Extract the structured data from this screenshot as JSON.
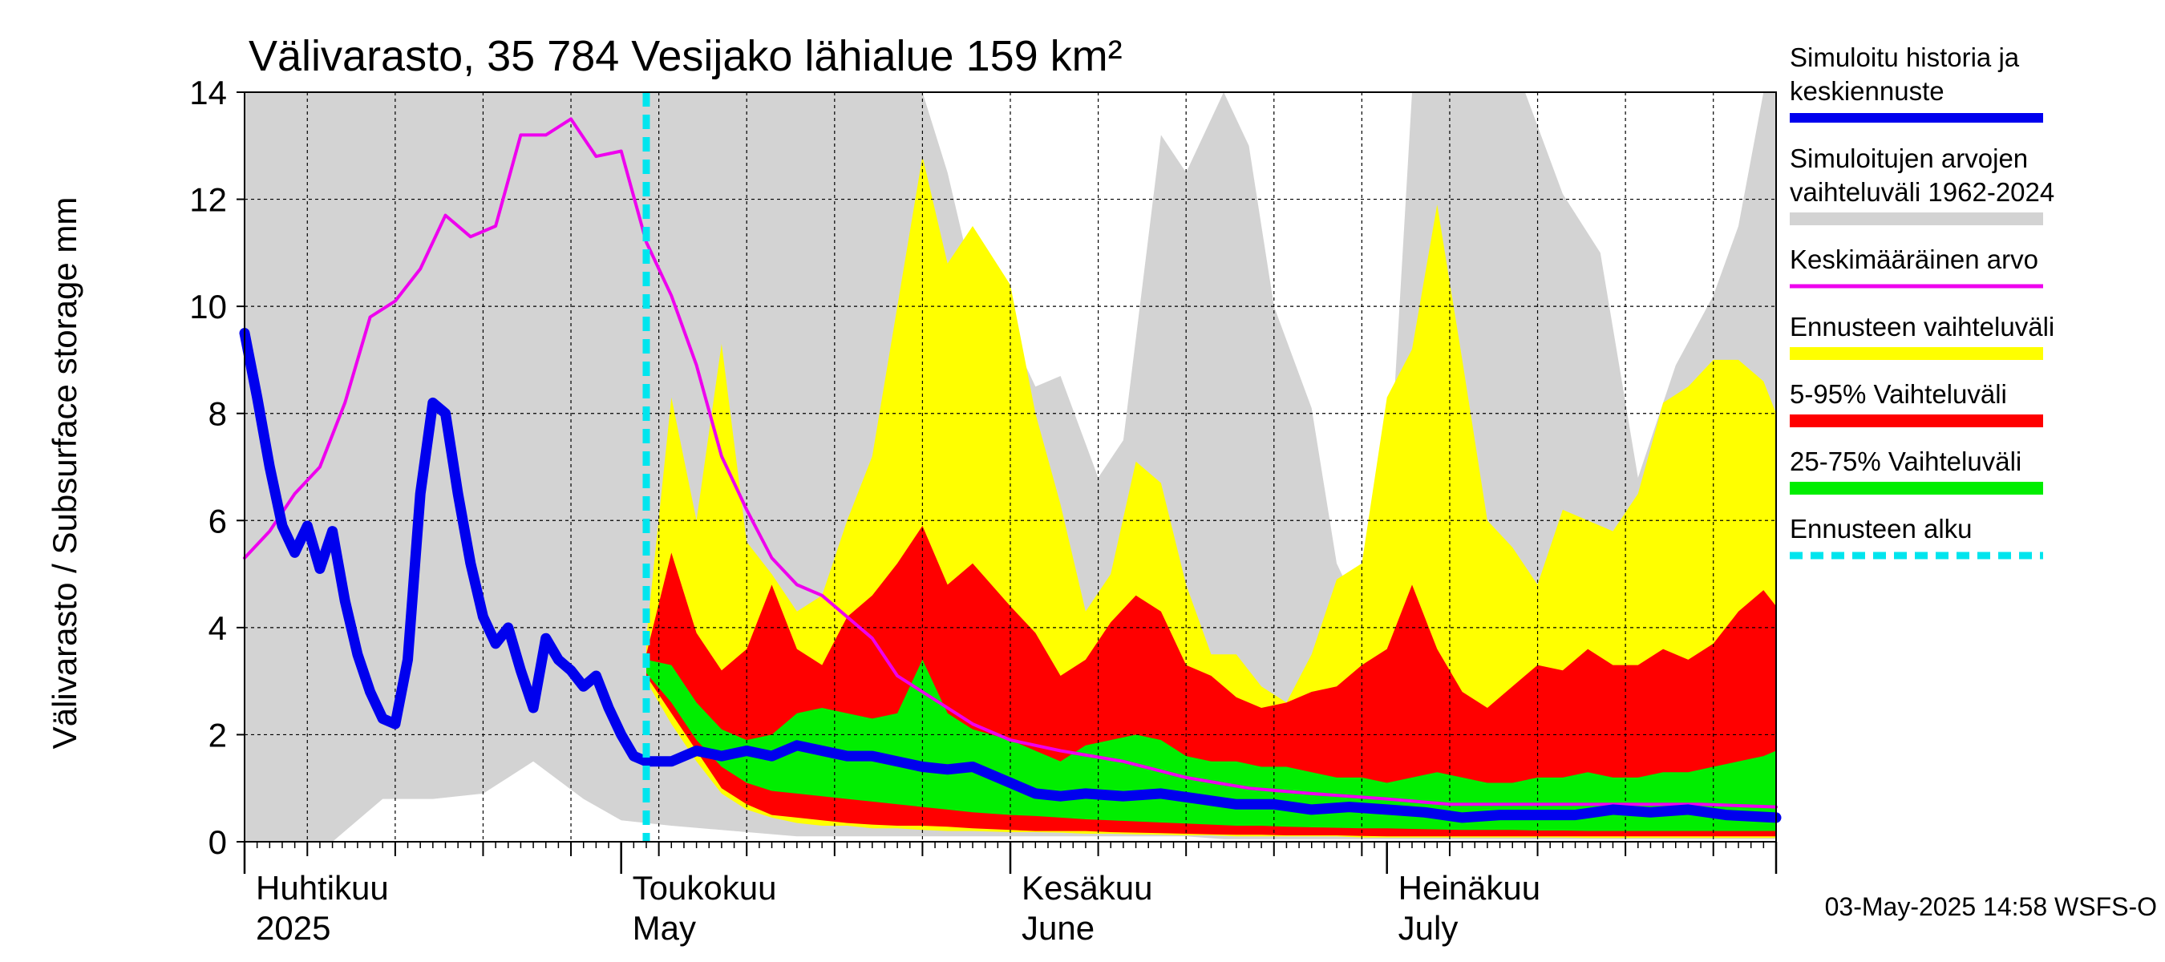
{
  "chart_data": {
    "type": "area",
    "title": "Välivarasto, 35 784 Vesijako lähialue 159 km²",
    "ylabel": "Välivarasto / Subsurface storage  mm",
    "xlabel": "",
    "ylim": [
      0,
      14
    ],
    "y_ticks": [
      0,
      2,
      4,
      6,
      8,
      10,
      12,
      14
    ],
    "y_tick_labels": [
      "0",
      "2",
      "4",
      "6",
      "8",
      "10",
      "12",
      "14"
    ],
    "x_range": [
      "2025-04-01",
      "2025-08-01"
    ],
    "grid": true,
    "legend_placement": "right",
    "month_labels": [
      {
        "date": "2025-04-01",
        "line1": "Huhtikuu",
        "line2": "2025"
      },
      {
        "date": "2025-05-01",
        "line1": "Toukokuu",
        "line2": "May"
      },
      {
        "date": "2025-06-01",
        "line1": "Kesäkuu",
        "line2": "June"
      },
      {
        "date": "2025-07-01",
        "line1": "Heinäkuu",
        "line2": "July"
      }
    ],
    "forecast_start": "2025-05-03",
    "footer": "03-May-2025 14:58 WSFS-O",
    "colors": {
      "history": "#0000ee",
      "range_hist": "#d3d3d3",
      "mean": "#ee00ee",
      "forecast_range": "#ffff00",
      "p5_95": "#ff0000",
      "p25_75": "#00ee00",
      "forecast_start": "#00e5ee",
      "grid": "#000000"
    },
    "legend": [
      {
        "key": "history",
        "lines": [
          "Simuloitu historia ja",
          "keskiennuste"
        ],
        "style": "thick"
      },
      {
        "key": "range_hist",
        "lines": [
          "Simuloitujen arvojen",
          "vaihteluväli 1962-2024"
        ],
        "style": "band"
      },
      {
        "key": "mean",
        "lines": [
          "Keskimääräinen arvo"
        ],
        "style": "thin"
      },
      {
        "key": "forecast_range",
        "lines": [
          "Ennusteen vaihteluväli"
        ],
        "style": "band"
      },
      {
        "key": "p5_95",
        "lines": [
          "5-95% Vaihteluväli"
        ],
        "style": "band"
      },
      {
        "key": "p25_75",
        "lines": [
          "25-75% Vaihteluväli"
        ],
        "style": "band"
      },
      {
        "key": "forecast_start",
        "lines": [
          "Ennusteen alku"
        ],
        "style": "dashed"
      }
    ],
    "series": [
      {
        "key": "range_hist",
        "kind": "band",
        "x": [
          "2025-04-01",
          "2025-04-08",
          "2025-04-12",
          "2025-04-16",
          "2025-04-20",
          "2025-04-24",
          "2025-04-28",
          "2025-05-01",
          "2025-05-05",
          "2025-05-10",
          "2025-05-15",
          "2025-05-20",
          "2025-05-25",
          "2025-05-27",
          "2025-05-29",
          "2025-06-01",
          "2025-06-03",
          "2025-06-05",
          "2025-06-08",
          "2025-06-10",
          "2025-06-13",
          "2025-06-15",
          "2025-06-18",
          "2025-06-20",
          "2025-06-22",
          "2025-06-25",
          "2025-06-27",
          "2025-06-29",
          "2025-07-01",
          "2025-07-03",
          "2025-07-06",
          "2025-07-09",
          "2025-07-12",
          "2025-07-15",
          "2025-07-18",
          "2025-07-21",
          "2025-07-24",
          "2025-07-27",
          "2025-07-29",
          "2025-07-31",
          "2025-08-01"
        ],
        "low": [
          0,
          0,
          0.8,
          0.8,
          0.9,
          1.5,
          0.8,
          0.4,
          0.3,
          0.2,
          0.1,
          0.1,
          0.1,
          0.1,
          0.1,
          0.1,
          0.1,
          0.1,
          0.1,
          0.1,
          0.1,
          0.1,
          0.05,
          0.05,
          0.05,
          0.05,
          0.05,
          0.05,
          0.05,
          0.05,
          0.05,
          0.05,
          0.05,
          0.05,
          0.05,
          0.05,
          0.05,
          0.05,
          0.05,
          0.05,
          0.05
        ],
        "high": [
          14,
          14,
          14,
          14,
          14,
          14,
          14,
          14,
          14,
          14,
          14,
          14,
          14,
          12.5,
          10.5,
          9.5,
          8.5,
          8.7,
          6.8,
          7.5,
          13.2,
          12.5,
          14,
          13,
          10,
          8.1,
          5.2,
          4.2,
          6,
          14,
          14,
          14,
          14,
          12.1,
          11,
          6.8,
          8.9,
          10.2,
          11.5,
          14,
          14
        ]
      },
      {
        "key": "forecast_range",
        "kind": "band",
        "x": [
          "2025-05-03",
          "2025-05-05",
          "2025-05-07",
          "2025-05-09",
          "2025-05-11",
          "2025-05-13",
          "2025-05-15",
          "2025-05-17",
          "2025-05-19",
          "2025-05-21",
          "2025-05-23",
          "2025-05-25",
          "2025-05-27",
          "2025-05-29",
          "2025-06-01",
          "2025-06-03",
          "2025-06-05",
          "2025-06-07",
          "2025-06-09",
          "2025-06-11",
          "2025-06-13",
          "2025-06-15",
          "2025-06-17",
          "2025-06-19",
          "2025-06-21",
          "2025-06-23",
          "2025-06-25",
          "2025-06-27",
          "2025-06-29",
          "2025-07-01",
          "2025-07-03",
          "2025-07-05",
          "2025-07-07",
          "2025-07-09",
          "2025-07-11",
          "2025-07-13",
          "2025-07-15",
          "2025-07-17",
          "2025-07-19",
          "2025-07-21",
          "2025-07-23",
          "2025-07-25",
          "2025-07-27",
          "2025-07-29",
          "2025-07-31",
          "2025-08-01"
        ],
        "low": [
          3.0,
          2.2,
          1.5,
          0.9,
          0.6,
          0.45,
          0.35,
          0.3,
          0.3,
          0.25,
          0.25,
          0.22,
          0.2,
          0.2,
          0.18,
          0.18,
          0.17,
          0.15,
          0.15,
          0.14,
          0.13,
          0.12,
          0.12,
          0.1,
          0.1,
          0.1,
          0.1,
          0.1,
          0.08,
          0.08,
          0.08,
          0.08,
          0.08,
          0.08,
          0.08,
          0.08,
          0.08,
          0.07,
          0.07,
          0.07,
          0.07,
          0.07,
          0.07,
          0.07,
          0.07,
          0.07
        ],
        "high": [
          3.8,
          8.3,
          6.0,
          9.3,
          5.6,
          5.0,
          4.3,
          4.6,
          6.0,
          7.2,
          10.0,
          12.8,
          10.8,
          11.5,
          10.4,
          8.0,
          6.3,
          4.3,
          5.0,
          7.1,
          6.7,
          4.8,
          3.5,
          3.5,
          2.9,
          2.6,
          3.5,
          4.9,
          5.2,
          8.3,
          9.2,
          11.9,
          9.0,
          6.0,
          5.5,
          4.8,
          6.2,
          6.0,
          5.8,
          6.5,
          8.2,
          8.5,
          9.0,
          9.0,
          8.6,
          8.0
        ]
      },
      {
        "key": "p5_95",
        "kind": "band",
        "x": [
          "2025-05-03",
          "2025-05-05",
          "2025-05-07",
          "2025-05-09",
          "2025-05-11",
          "2025-05-13",
          "2025-05-15",
          "2025-05-17",
          "2025-05-19",
          "2025-05-21",
          "2025-05-23",
          "2025-05-25",
          "2025-05-27",
          "2025-05-29",
          "2025-06-01",
          "2025-06-03",
          "2025-06-05",
          "2025-06-07",
          "2025-06-09",
          "2025-06-11",
          "2025-06-13",
          "2025-06-15",
          "2025-06-17",
          "2025-06-19",
          "2025-06-21",
          "2025-06-23",
          "2025-06-25",
          "2025-06-27",
          "2025-06-29",
          "2025-07-01",
          "2025-07-03",
          "2025-07-05",
          "2025-07-07",
          "2025-07-09",
          "2025-07-11",
          "2025-07-13",
          "2025-07-15",
          "2025-07-17",
          "2025-07-19",
          "2025-07-21",
          "2025-07-23",
          "2025-07-25",
          "2025-07-27",
          "2025-07-29",
          "2025-07-31",
          "2025-08-01"
        ],
        "low": [
          3.1,
          2.4,
          1.7,
          1.0,
          0.7,
          0.5,
          0.45,
          0.4,
          0.35,
          0.32,
          0.3,
          0.3,
          0.28,
          0.25,
          0.22,
          0.2,
          0.2,
          0.2,
          0.18,
          0.17,
          0.16,
          0.15,
          0.14,
          0.13,
          0.13,
          0.12,
          0.12,
          0.12,
          0.11,
          0.1,
          0.1,
          0.1,
          0.1,
          0.1,
          0.1,
          0.1,
          0.1,
          0.1,
          0.1,
          0.1,
          0.1,
          0.1,
          0.1,
          0.1,
          0.1,
          0.1
        ],
        "high": [
          3.5,
          5.4,
          3.9,
          3.2,
          3.6,
          4.8,
          3.6,
          3.3,
          4.2,
          4.6,
          5.2,
          5.9,
          4.8,
          5.2,
          4.4,
          3.9,
          3.1,
          3.4,
          4.1,
          4.6,
          4.3,
          3.3,
          3.1,
          2.7,
          2.5,
          2.6,
          2.8,
          2.9,
          3.3,
          3.6,
          4.8,
          3.6,
          2.8,
          2.5,
          2.9,
          3.3,
          3.2,
          3.6,
          3.3,
          3.3,
          3.6,
          3.4,
          3.7,
          4.3,
          4.7,
          4.4
        ]
      },
      {
        "key": "p25_75",
        "kind": "band",
        "x": [
          "2025-05-03",
          "2025-05-05",
          "2025-05-07",
          "2025-05-09",
          "2025-05-11",
          "2025-05-13",
          "2025-05-15",
          "2025-05-17",
          "2025-05-19",
          "2025-05-21",
          "2025-05-23",
          "2025-05-25",
          "2025-05-27",
          "2025-05-29",
          "2025-06-01",
          "2025-06-03",
          "2025-06-05",
          "2025-06-07",
          "2025-06-09",
          "2025-06-11",
          "2025-06-13",
          "2025-06-15",
          "2025-06-17",
          "2025-06-19",
          "2025-06-21",
          "2025-06-23",
          "2025-06-25",
          "2025-06-27",
          "2025-06-29",
          "2025-07-01",
          "2025-07-03",
          "2025-07-05",
          "2025-07-07",
          "2025-07-09",
          "2025-07-11",
          "2025-07-13",
          "2025-07-15",
          "2025-07-17",
          "2025-07-19",
          "2025-07-21",
          "2025-07-23",
          "2025-07-25",
          "2025-07-27",
          "2025-07-29",
          "2025-07-31",
          "2025-08-01"
        ],
        "low": [
          3.15,
          2.6,
          1.9,
          1.4,
          1.1,
          0.95,
          0.9,
          0.85,
          0.8,
          0.75,
          0.7,
          0.65,
          0.6,
          0.55,
          0.5,
          0.48,
          0.45,
          0.42,
          0.4,
          0.38,
          0.36,
          0.34,
          0.32,
          0.3,
          0.3,
          0.28,
          0.27,
          0.26,
          0.25,
          0.25,
          0.24,
          0.23,
          0.22,
          0.22,
          0.22,
          0.21,
          0.21,
          0.2,
          0.2,
          0.2,
          0.2,
          0.2,
          0.2,
          0.2,
          0.2,
          0.2
        ],
        "high": [
          3.4,
          3.3,
          2.6,
          2.1,
          1.9,
          2.0,
          2.4,
          2.5,
          2.4,
          2.3,
          2.4,
          3.4,
          2.4,
          2.1,
          1.9,
          1.7,
          1.5,
          1.8,
          1.9,
          2.0,
          1.9,
          1.6,
          1.5,
          1.5,
          1.4,
          1.4,
          1.3,
          1.2,
          1.2,
          1.1,
          1.2,
          1.3,
          1.2,
          1.1,
          1.1,
          1.2,
          1.2,
          1.3,
          1.2,
          1.2,
          1.3,
          1.3,
          1.4,
          1.5,
          1.6,
          1.7
        ]
      },
      {
        "key": "mean",
        "kind": "line",
        "x": [
          "2025-04-01",
          "2025-04-03",
          "2025-04-05",
          "2025-04-07",
          "2025-04-09",
          "2025-04-11",
          "2025-04-13",
          "2025-04-15",
          "2025-04-17",
          "2025-04-19",
          "2025-04-21",
          "2025-04-23",
          "2025-04-25",
          "2025-04-27",
          "2025-04-29",
          "2025-05-01",
          "2025-05-03",
          "2025-05-05",
          "2025-05-07",
          "2025-05-09",
          "2025-05-11",
          "2025-05-13",
          "2025-05-15",
          "2025-05-17",
          "2025-05-19",
          "2025-05-21",
          "2025-05-23",
          "2025-05-25",
          "2025-05-27",
          "2025-05-29",
          "2025-06-01",
          "2025-06-05",
          "2025-06-10",
          "2025-06-15",
          "2025-06-20",
          "2025-06-25",
          "2025-07-01",
          "2025-07-06",
          "2025-07-11",
          "2025-07-16",
          "2025-07-21",
          "2025-07-26",
          "2025-08-01"
        ],
        "y": [
          5.3,
          5.8,
          6.5,
          7.0,
          8.2,
          9.8,
          10.1,
          10.7,
          11.7,
          11.3,
          11.5,
          13.2,
          13.2,
          13.5,
          12.8,
          12.9,
          11.2,
          10.2,
          8.9,
          7.2,
          6.2,
          5.3,
          4.8,
          4.6,
          4.2,
          3.8,
          3.1,
          2.8,
          2.5,
          2.2,
          1.9,
          1.7,
          1.5,
          1.2,
          1.0,
          0.9,
          0.8,
          0.7,
          0.7,
          0.7,
          0.7,
          0.7,
          0.65
        ]
      },
      {
        "key": "history",
        "kind": "line",
        "x": [
          "2025-04-01",
          "2025-04-02",
          "2025-04-03",
          "2025-04-04",
          "2025-04-05",
          "2025-04-06",
          "2025-04-07",
          "2025-04-08",
          "2025-04-09",
          "2025-04-10",
          "2025-04-11",
          "2025-04-12",
          "2025-04-13",
          "2025-04-14",
          "2025-04-15",
          "2025-04-16",
          "2025-04-17",
          "2025-04-18",
          "2025-04-19",
          "2025-04-20",
          "2025-04-21",
          "2025-04-22",
          "2025-04-23",
          "2025-04-24",
          "2025-04-25",
          "2025-04-26",
          "2025-04-27",
          "2025-04-28",
          "2025-04-29",
          "2025-04-30",
          "2025-05-01",
          "2025-05-02",
          "2025-05-03",
          "2025-05-05",
          "2025-05-07",
          "2025-05-09",
          "2025-05-11",
          "2025-05-13",
          "2025-05-15",
          "2025-05-17",
          "2025-05-19",
          "2025-05-21",
          "2025-05-23",
          "2025-05-25",
          "2025-05-27",
          "2025-05-29",
          "2025-06-01",
          "2025-06-03",
          "2025-06-05",
          "2025-06-07",
          "2025-06-10",
          "2025-06-13",
          "2025-06-16",
          "2025-06-19",
          "2025-06-22",
          "2025-06-25",
          "2025-06-28",
          "2025-07-01",
          "2025-07-04",
          "2025-07-07",
          "2025-07-10",
          "2025-07-13",
          "2025-07-16",
          "2025-07-19",
          "2025-07-22",
          "2025-07-25",
          "2025-07-28",
          "2025-08-01"
        ],
        "y": [
          9.5,
          8.3,
          7.0,
          5.9,
          5.4,
          5.9,
          5.1,
          5.8,
          4.5,
          3.5,
          2.8,
          2.3,
          2.2,
          3.4,
          6.5,
          8.2,
          8.0,
          6.5,
          5.2,
          4.2,
          3.7,
          4.0,
          3.2,
          2.5,
          3.8,
          3.4,
          3.2,
          2.9,
          3.1,
          2.5,
          2.0,
          1.6,
          1.5,
          1.5,
          1.7,
          1.6,
          1.7,
          1.6,
          1.8,
          1.7,
          1.6,
          1.6,
          1.5,
          1.4,
          1.35,
          1.4,
          1.1,
          0.9,
          0.85,
          0.9,
          0.85,
          0.9,
          0.8,
          0.7,
          0.7,
          0.6,
          0.65,
          0.6,
          0.55,
          0.45,
          0.5,
          0.5,
          0.5,
          0.6,
          0.55,
          0.6,
          0.5,
          0.45
        ]
      }
    ]
  }
}
